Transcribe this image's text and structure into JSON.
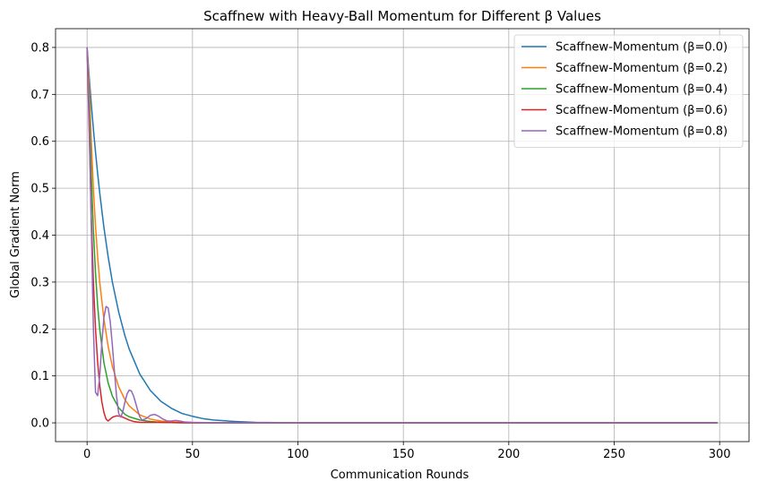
{
  "chart_data": {
    "type": "line",
    "title": "Scaffnew with Heavy-Ball Momentum for Different β Values",
    "xlabel": "Communication Rounds",
    "ylabel": "Global Gradient Norm",
    "xlim": [
      -14.95,
      313.95
    ],
    "ylim": [
      -0.04,
      0.84
    ],
    "xticks": [
      0,
      50,
      100,
      150,
      200,
      250,
      300
    ],
    "yticks": [
      0.0,
      0.1,
      0.2,
      0.3,
      0.4,
      0.5,
      0.6,
      0.7,
      0.8
    ],
    "xtick_labels": [
      "0",
      "50",
      "100",
      "150",
      "200",
      "250",
      "300"
    ],
    "ytick_labels": [
      "0.0",
      "0.1",
      "0.2",
      "0.3",
      "0.4",
      "0.5",
      "0.6",
      "0.7",
      "0.8"
    ],
    "grid": true,
    "legend_position": "top-right",
    "series": [
      {
        "name": "Scaffnew-Momentum (β=0.0)",
        "color": "#1f77b4",
        "x": [
          0,
          1,
          2,
          3,
          4,
          5,
          6,
          8,
          10,
          12,
          15,
          18,
          20,
          25,
          30,
          35,
          40,
          45,
          50,
          55,
          60,
          70,
          80,
          100,
          150,
          200,
          250,
          299
        ],
        "y": [
          0.8,
          0.737,
          0.679,
          0.626,
          0.577,
          0.532,
          0.49,
          0.416,
          0.354,
          0.3,
          0.236,
          0.185,
          0.157,
          0.104,
          0.069,
          0.046,
          0.031,
          0.02,
          0.014,
          0.009,
          0.006,
          0.003,
          0.001,
          0.0,
          0.0,
          0.0,
          0.0,
          0.0
        ]
      },
      {
        "name": "Scaffnew-Momentum (β=0.2)",
        "color": "#ff7f0e",
        "x": [
          0,
          1,
          2,
          3,
          4,
          5,
          6,
          8,
          10,
          12,
          15,
          18,
          20,
          25,
          30,
          35,
          40,
          45,
          50,
          60,
          80,
          100,
          150,
          200,
          250,
          299
        ],
        "y": [
          0.8,
          0.72,
          0.6,
          0.5,
          0.42,
          0.355,
          0.3,
          0.22,
          0.163,
          0.12,
          0.077,
          0.049,
          0.036,
          0.017,
          0.008,
          0.004,
          0.002,
          0.001,
          0.0005,
          0.0,
          0.0,
          0.0,
          0.0,
          0.0,
          0.0,
          0.0
        ]
      },
      {
        "name": "Scaffnew-Momentum (β=0.4)",
        "color": "#2ca02c",
        "x": [
          0,
          1,
          2,
          3,
          4,
          5,
          6,
          8,
          10,
          12,
          15,
          18,
          20,
          25,
          30,
          35,
          40,
          45,
          50,
          60,
          80,
          100,
          150,
          200,
          250,
          299
        ],
        "y": [
          0.8,
          0.68,
          0.53,
          0.41,
          0.32,
          0.25,
          0.2,
          0.128,
          0.085,
          0.057,
          0.032,
          0.018,
          0.013,
          0.006,
          0.003,
          0.001,
          0.0005,
          0.0002,
          0.0,
          0.0,
          0.0,
          0.0,
          0.0,
          0.0,
          0.0,
          0.0
        ]
      },
      {
        "name": "Scaffnew-Momentum (β=0.6)",
        "color": "#d62728",
        "x": [
          0,
          1,
          2,
          3,
          4,
          5,
          6,
          7,
          8,
          9,
          10,
          11,
          12,
          14,
          16,
          18,
          20,
          22,
          25,
          30,
          35,
          40,
          50,
          100,
          150,
          200,
          250,
          299
        ],
        "y": [
          0.8,
          0.62,
          0.44,
          0.3,
          0.2,
          0.13,
          0.08,
          0.045,
          0.022,
          0.008,
          0.004,
          0.008,
          0.012,
          0.015,
          0.014,
          0.01,
          0.006,
          0.003,
          0.001,
          0.001,
          0.001,
          0.0005,
          0.0,
          0.0,
          0.0,
          0.0,
          0.0,
          0.0
        ]
      },
      {
        "name": "Scaffnew-Momentum (β=0.8)",
        "color": "#9467bd",
        "x": [
          0,
          1,
          2,
          3,
          4,
          5,
          6,
          7,
          8,
          9,
          10,
          11,
          12,
          13,
          14,
          15,
          16,
          17,
          18,
          19,
          20,
          21,
          22,
          23,
          24,
          25,
          26,
          28,
          30,
          32,
          34,
          36,
          38,
          40,
          42,
          44,
          46,
          50,
          60,
          100,
          150,
          200,
          250,
          299
        ],
        "y": [
          0.8,
          0.65,
          0.42,
          0.2,
          0.065,
          0.058,
          0.1,
          0.17,
          0.225,
          0.248,
          0.245,
          0.215,
          0.165,
          0.108,
          0.056,
          0.02,
          0.012,
          0.025,
          0.045,
          0.062,
          0.07,
          0.068,
          0.058,
          0.043,
          0.027,
          0.013,
          0.006,
          0.009,
          0.016,
          0.018,
          0.014,
          0.008,
          0.004,
          0.004,
          0.005,
          0.004,
          0.002,
          0.001,
          0.0,
          0.0,
          0.0,
          0.0,
          0.0,
          0.0
        ]
      }
    ]
  }
}
